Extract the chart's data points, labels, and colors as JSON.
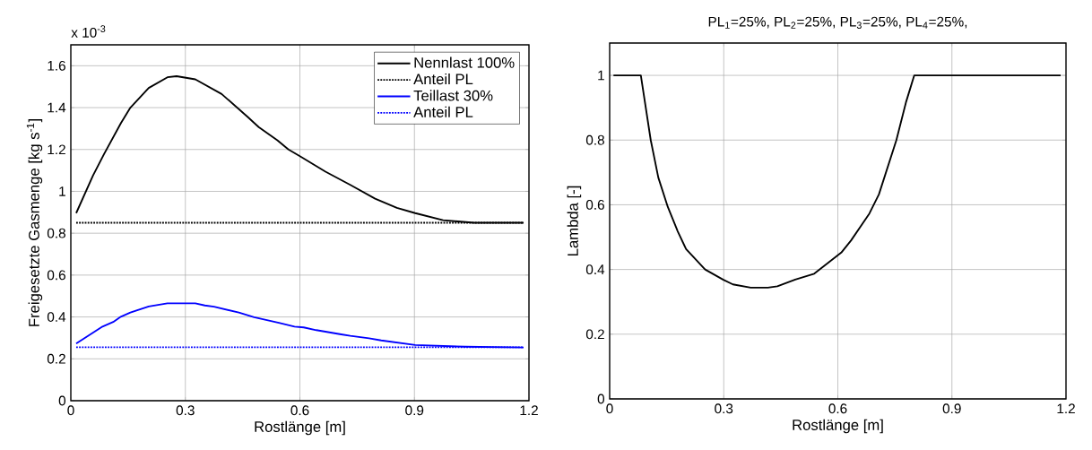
{
  "chart_data": [
    {
      "type": "line",
      "xlabel": "Rostlänge [m]",
      "ylabel": "Freigesetzte Gasmenge [kg s$^{-1}$]",
      "annotations": [
        "x 10$^{-3}$"
      ],
      "xlim": [
        0,
        1.2
      ],
      "xticks": [
        0,
        0.3,
        0.6,
        0.9,
        1.2
      ],
      "ylim": [
        0,
        1.7
      ],
      "yticks": [
        0,
        0.2,
        0.4,
        0.6,
        0.8,
        1,
        1.2,
        1.4,
        1.6
      ],
      "grid": true,
      "legend": "top right",
      "series": [
        {
          "name": "Nennlast 100%",
          "color": "#000000",
          "line_style": "solid",
          "x": [
            0.014,
            0.058,
            0.087,
            0.131,
            0.156,
            0.204,
            0.253,
            0.277,
            0.326,
            0.395,
            0.464,
            0.492,
            0.541,
            0.57,
            0.602,
            0.667,
            0.732,
            0.797,
            0.854,
            0.902,
            0.975,
            1.056,
            1.186
          ],
          "values": [
            0.896,
            1.075,
            1.178,
            1.325,
            1.4,
            1.494,
            1.545,
            1.55,
            1.535,
            1.465,
            1.354,
            1.307,
            1.244,
            1.2,
            1.166,
            1.094,
            1.031,
            0.965,
            0.921,
            0.896,
            0.862,
            0.85,
            0.85
          ]
        },
        {
          "name": "Anteil PL",
          "color": "#000000",
          "line_style": "dotted",
          "x": [
            0.014,
            1.186
          ],
          "values": [
            0.85,
            0.85
          ]
        },
        {
          "name": "Teillast 30%",
          "color": "#0000ff",
          "line_style": "solid",
          "x": [
            0.014,
            0.083,
            0.111,
            0.131,
            0.156,
            0.204,
            0.253,
            0.326,
            0.351,
            0.375,
            0.44,
            0.48,
            0.545,
            0.586,
            0.61,
            0.643,
            0.708,
            0.732,
            0.781,
            0.813,
            0.902,
            1.032,
            1.186
          ],
          "values": [
            0.273,
            0.354,
            0.376,
            0.401,
            0.421,
            0.45,
            0.465,
            0.465,
            0.455,
            0.449,
            0.421,
            0.399,
            0.372,
            0.354,
            0.35,
            0.337,
            0.317,
            0.31,
            0.298,
            0.288,
            0.266,
            0.258,
            0.254
          ]
        },
        {
          "name": "Anteil PL",
          "color": "#0000ff",
          "line_style": "dotted",
          "x": [
            0.014,
            1.186
          ],
          "values": [
            0.255,
            0.255
          ]
        }
      ]
    },
    {
      "type": "line",
      "title": "PL$_{1}$=25%, PL$_{2}$=25%, PL$_{3}$=25%, PL$_{4}$=25%,",
      "xlabel": "Rostlänge [m]",
      "ylabel": "Lambda [-]",
      "xlim": [
        0,
        1.2
      ],
      "xticks": [
        0,
        0.3,
        0.6,
        0.9,
        1.2
      ],
      "ylim": [
        0,
        1.1
      ],
      "yticks": [
        0,
        0.2,
        0.4,
        0.6,
        0.8,
        1
      ],
      "grid": true,
      "series": [
        {
          "color": "#000000",
          "line_style": "solid",
          "x": [
            0.01,
            0.082,
            0.108,
            0.128,
            0.153,
            0.179,
            0.201,
            0.251,
            0.298,
            0.324,
            0.371,
            0.416,
            0.441,
            0.488,
            0.538,
            0.609,
            0.635,
            0.683,
            0.708,
            0.754,
            0.779,
            0.801,
            1.186
          ],
          "values": [
            1,
            1,
            0.8,
            0.684,
            0.593,
            0.518,
            0.463,
            0.4,
            0.369,
            0.354,
            0.344,
            0.344,
            0.348,
            0.369,
            0.387,
            0.452,
            0.49,
            0.573,
            0.632,
            0.8,
            0.916,
            1,
            1
          ]
        }
      ]
    }
  ]
}
